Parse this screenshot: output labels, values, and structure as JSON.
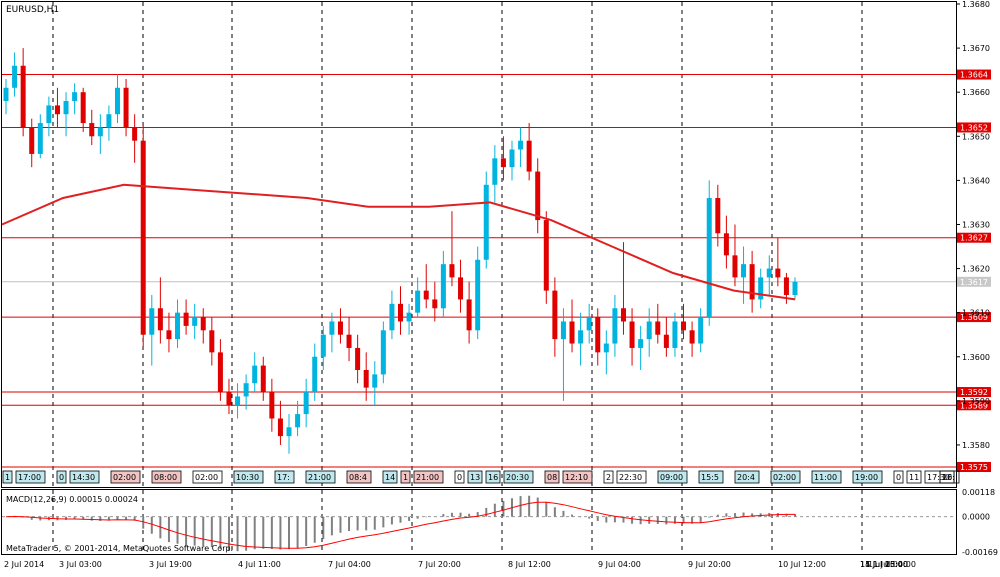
{
  "window": {
    "title": "EURUSD,H1"
  },
  "colors": {
    "bull": "#00b4e0",
    "bear": "#e00000",
    "level_line": "#e00000",
    "ma_line": "#e02020",
    "current_price_line": "#c0c0c0",
    "macd_hist": "#808080",
    "macd_signal": "#ff0000",
    "grid": "#000000"
  },
  "price_axis": {
    "ticks": [
      "1.3680",
      "1.3670",
      "1.3660",
      "1.3650",
      "1.3640",
      "1.3630",
      "1.3620",
      "1.3610",
      "1.3600",
      "1.3590",
      "1.3580"
    ]
  },
  "level_tags": [
    {
      "price": 1.3664,
      "text": "1.3664"
    },
    {
      "price": 1.3652,
      "text": "1.3652"
    },
    {
      "price": 1.3627,
      "text": "1.3627"
    },
    {
      "price": 1.3609,
      "text": "1.3609"
    },
    {
      "price": 1.3592,
      "text": "1.3592"
    },
    {
      "price": 1.3589,
      "text": "1.3589"
    },
    {
      "price": 1.3575,
      "text": "1.3575"
    }
  ],
  "current_price": {
    "price": 1.3617,
    "text": "1.3617"
  },
  "session_markers": [
    {
      "text": "1",
      "style": "blue"
    },
    {
      "text": "17:00",
      "style": "blue"
    },
    {
      "text": "0",
      "style": "blue"
    },
    {
      "text": "14:30",
      "style": "blue"
    },
    {
      "text": "02:00",
      "style": "red"
    },
    {
      "text": "08:00",
      "style": "red"
    },
    {
      "text": "02:00",
      "style": "plain"
    },
    {
      "text": "10:30",
      "style": "blue"
    },
    {
      "text": "17:",
      "style": "blue"
    },
    {
      "text": "21:00",
      "style": "blue"
    },
    {
      "text": "08:4",
      "style": "red"
    },
    {
      "text": "14",
      "style": "blue"
    },
    {
      "text": "1",
      "style": "red"
    },
    {
      "text": "21:00",
      "style": "red"
    },
    {
      "text": "0",
      "style": "plain"
    },
    {
      "text": "13",
      "style": "blue"
    },
    {
      "text": "16",
      "style": "blue"
    },
    {
      "text": "20:30",
      "style": "blue"
    },
    {
      "text": "08",
      "style": "red"
    },
    {
      "text": "12:10",
      "style": "red"
    },
    {
      "text": "2",
      "style": "plain"
    },
    {
      "text": "22:30",
      "style": "plain"
    },
    {
      "text": "09:00",
      "style": "blue"
    },
    {
      "text": "15:5",
      "style": "blue"
    },
    {
      "text": "20:4",
      "style": "blue"
    },
    {
      "text": "02:00",
      "style": "blue"
    },
    {
      "text": "11:00",
      "style": "blue"
    },
    {
      "text": "19:00",
      "style": "blue"
    },
    {
      "text": "0",
      "style": "plain"
    },
    {
      "text": "11",
      "style": "plain"
    },
    {
      "text": "17:30",
      "style": "plain"
    },
    {
      "text": "16:",
      "style": "plain"
    },
    {
      "text": "20",
      "style": "plain"
    }
  ],
  "macd": {
    "label": "MACD(12,26,9) 0.00015 0.00024",
    "ticks": [
      "0.00118",
      "0.0000",
      "-0.00169"
    ]
  },
  "time_axis": {
    "labels": [
      "2 Jul 2014",
      "3 Jul 03:00",
      "3 Jul 19:00",
      "4 Jul 11:00",
      "7 Jul 04:00",
      "7 Jul 20:00",
      "8 Jul 12:00",
      "9 Jul 04:00",
      "9 Jul 20:00",
      "10 Jul 12:00",
      "11 Jul 04:00",
      "11 Jul 20:00",
      "14 Jul 13:00",
      "15 Jul 05:00"
    ]
  },
  "copyright": "MetaTrader 5, © 2001-2014, MetaQuotes Software Corp.",
  "chart_data": {
    "type": "candlestick",
    "symbol": "EURUSD",
    "timeframe": "H1",
    "ylim": [
      1.3575,
      1.368
    ],
    "horizontal_levels": [
      1.3664,
      1.3652,
      1.3627,
      1.3609,
      1.3592,
      1.3589,
      1.3575
    ],
    "current_price": 1.3617,
    "moving_average": [
      {
        "x": "2 Jul 2014",
        "y": 1.363
      },
      {
        "x": "3 Jul 03:00",
        "y": 1.3636
      },
      {
        "x": "3 Jul 19:00",
        "y": 1.3639
      },
      {
        "x": "4 Jul 11:00",
        "y": 1.3638
      },
      {
        "x": "7 Jul 04:00",
        "y": 1.3637
      },
      {
        "x": "7 Jul 20:00",
        "y": 1.3636
      },
      {
        "x": "8 Jul 12:00",
        "y": 1.3634
      },
      {
        "x": "9 Jul 04:00",
        "y": 1.3634
      },
      {
        "x": "9 Jul 20:00",
        "y": 1.3635
      },
      {
        "x": "10 Jul 12:00",
        "y": 1.3631
      },
      {
        "x": "11 Jul 04:00",
        "y": 1.3625
      },
      {
        "x": "11 Jul 20:00",
        "y": 1.3619
      },
      {
        "x": "14 Jul 13:00",
        "y": 1.3615
      },
      {
        "x": "15 Jul 05:00",
        "y": 1.3613
      }
    ],
    "candles": [
      [
        1.3658,
        1.3663,
        1.3655,
        1.3661
      ],
      [
        1.3661,
        1.3669,
        1.3659,
        1.3666
      ],
      [
        1.3666,
        1.367,
        1.365,
        1.3652
      ],
      [
        1.3652,
        1.3654,
        1.3643,
        1.3646
      ],
      [
        1.3646,
        1.3655,
        1.3645,
        1.3653
      ],
      [
        1.3653,
        1.3659,
        1.365,
        1.3657
      ],
      [
        1.3657,
        1.3661,
        1.3652,
        1.3655
      ],
      [
        1.3655,
        1.366,
        1.365,
        1.3658
      ],
      [
        1.3658,
        1.3662,
        1.3655,
        1.366
      ],
      [
        1.366,
        1.3661,
        1.3651,
        1.3653
      ],
      [
        1.3653,
        1.3656,
        1.3648,
        1.365
      ],
      [
        1.365,
        1.3655,
        1.3646,
        1.3652
      ],
      [
        1.3652,
        1.3657,
        1.3649,
        1.3655
      ],
      [
        1.3655,
        1.3664,
        1.3653,
        1.3661
      ],
      [
        1.3661,
        1.3663,
        1.365,
        1.3652
      ],
      [
        1.3652,
        1.3655,
        1.3644,
        1.3649
      ],
      [
        1.3649,
        1.3653,
        1.3602,
        1.3605
      ],
      [
        1.3605,
        1.3614,
        1.3598,
        1.3611
      ],
      [
        1.3611,
        1.3618,
        1.3603,
        1.3606
      ],
      [
        1.3606,
        1.361,
        1.3601,
        1.3604
      ],
      [
        1.3604,
        1.3613,
        1.3602,
        1.361
      ],
      [
        1.361,
        1.3613,
        1.3605,
        1.3607
      ],
      [
        1.3607,
        1.3612,
        1.3604,
        1.3609
      ],
      [
        1.3609,
        1.3611,
        1.3603,
        1.3606
      ],
      [
        1.3606,
        1.3609,
        1.3598,
        1.3601
      ],
      [
        1.3601,
        1.3604,
        1.359,
        1.3592
      ],
      [
        1.3592,
        1.3595,
        1.3587,
        1.3589
      ],
      [
        1.3589,
        1.3594,
        1.3586,
        1.3591
      ],
      [
        1.3591,
        1.3596,
        1.3588,
        1.3594
      ],
      [
        1.3594,
        1.3601,
        1.3592,
        1.3598
      ],
      [
        1.3598,
        1.36,
        1.359,
        1.3592
      ],
      [
        1.3592,
        1.3595,
        1.3583,
        1.3586
      ],
      [
        1.3586,
        1.359,
        1.358,
        1.3582
      ],
      [
        1.3582,
        1.3587,
        1.3578,
        1.3584
      ],
      [
        1.3584,
        1.359,
        1.3582,
        1.3587
      ],
      [
        1.3587,
        1.3595,
        1.3584,
        1.3592
      ],
      [
        1.3592,
        1.3603,
        1.359,
        1.36
      ],
      [
        1.36,
        1.3607,
        1.3597,
        1.3605
      ],
      [
        1.3605,
        1.361,
        1.3601,
        1.3608
      ],
      [
        1.3608,
        1.3611,
        1.3603,
        1.3605
      ],
      [
        1.3605,
        1.3609,
        1.3599,
        1.3602
      ],
      [
        1.3602,
        1.3605,
        1.3594,
        1.3597
      ],
      [
        1.3597,
        1.3601,
        1.359,
        1.3593
      ],
      [
        1.3593,
        1.3599,
        1.3589,
        1.3596
      ],
      [
        1.3596,
        1.3608,
        1.3594,
        1.3606
      ],
      [
        1.3606,
        1.3615,
        1.3604,
        1.3612
      ],
      [
        1.3612,
        1.3616,
        1.3605,
        1.3608
      ],
      [
        1.3608,
        1.3612,
        1.3605,
        1.361
      ],
      [
        1.361,
        1.3618,
        1.3609,
        1.3615
      ],
      [
        1.3615,
        1.3621,
        1.3611,
        1.3613
      ],
      [
        1.3613,
        1.3617,
        1.3608,
        1.3611
      ],
      [
        1.3611,
        1.3624,
        1.3609,
        1.3621
      ],
      [
        1.3621,
        1.3633,
        1.3616,
        1.3618
      ],
      [
        1.3618,
        1.3622,
        1.361,
        1.3613
      ],
      [
        1.3613,
        1.3617,
        1.3603,
        1.3606
      ],
      [
        1.3606,
        1.3625,
        1.3604,
        1.3622
      ],
      [
        1.3622,
        1.3642,
        1.362,
        1.3639
      ],
      [
        1.3639,
        1.3648,
        1.3635,
        1.3645
      ],
      [
        1.3645,
        1.365,
        1.364,
        1.3643
      ],
      [
        1.3643,
        1.3649,
        1.364,
        1.3647
      ],
      [
        1.3647,
        1.3652,
        1.3643,
        1.3649
      ],
      [
        1.3649,
        1.3653,
        1.364,
        1.3642
      ],
      [
        1.3642,
        1.3645,
        1.3628,
        1.3631
      ],
      [
        1.3631,
        1.3633,
        1.3612,
        1.3615
      ],
      [
        1.3615,
        1.3618,
        1.36,
        1.3604
      ],
      [
        1.3604,
        1.3611,
        1.359,
        1.3608
      ],
      [
        1.3608,
        1.3613,
        1.3601,
        1.3603
      ],
      [
        1.3603,
        1.361,
        1.3598,
        1.3606
      ],
      [
        1.3606,
        1.3612,
        1.3603,
        1.3609
      ],
      [
        1.3609,
        1.3611,
        1.3598,
        1.3601
      ],
      [
        1.3601,
        1.3606,
        1.3596,
        1.3603
      ],
      [
        1.3603,
        1.3614,
        1.36,
        1.3611
      ],
      [
        1.3611,
        1.3626,
        1.3605,
        1.3608
      ],
      [
        1.3608,
        1.3611,
        1.3598,
        1.3602
      ],
      [
        1.3602,
        1.3607,
        1.3597,
        1.3604
      ],
      [
        1.3604,
        1.3611,
        1.36,
        1.3608
      ],
      [
        1.3608,
        1.3612,
        1.3603,
        1.3605
      ],
      [
        1.3605,
        1.3609,
        1.36,
        1.3602
      ],
      [
        1.3602,
        1.361,
        1.36,
        1.3608
      ],
      [
        1.3608,
        1.3612,
        1.3604,
        1.3606
      ],
      [
        1.3606,
        1.3608,
        1.36,
        1.3603
      ],
      [
        1.3603,
        1.3611,
        1.3601,
        1.3609
      ],
      [
        1.3609,
        1.364,
        1.3607,
        1.3636
      ],
      [
        1.3636,
        1.3639,
        1.3625,
        1.3628
      ],
      [
        1.3628,
        1.3632,
        1.362,
        1.3623
      ],
      [
        1.3623,
        1.363,
        1.3616,
        1.3618
      ],
      [
        1.3618,
        1.3625,
        1.3612,
        1.3621
      ],
      [
        1.3621,
        1.3624,
        1.361,
        1.3613
      ],
      [
        1.3613,
        1.362,
        1.3611,
        1.3618
      ],
      [
        1.3618,
        1.3623,
        1.3614,
        1.362
      ],
      [
        1.362,
        1.3627,
        1.3616,
        1.3618
      ],
      [
        1.3618,
        1.3619,
        1.3612,
        1.3614
      ],
      [
        1.3614,
        1.3618,
        1.3613,
        1.3617
      ]
    ],
    "macd_histogram_range": [
      -0.00169,
      0.00118
    ]
  }
}
